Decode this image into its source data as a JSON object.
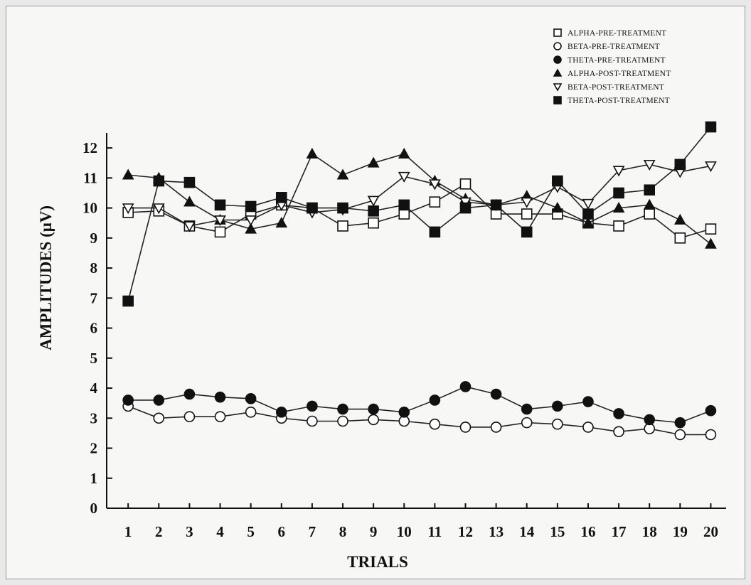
{
  "chart_data": {
    "type": "line",
    "title": "",
    "xlabel": "TRIALS",
    "ylabel": "AMPLITUDES (μV)",
    "ylim": [
      0,
      12.5
    ],
    "xlim": [
      0.3,
      20.5
    ],
    "grid": false,
    "legend_position": "top-right",
    "categories": [
      "1",
      "2",
      "3",
      "4",
      "5",
      "6",
      "7",
      "8",
      "9",
      "10",
      "11",
      "12",
      "13",
      "14",
      "15",
      "16",
      "17",
      "18",
      "19",
      "20"
    ],
    "y_ticks": [
      "0",
      "1",
      "2",
      "3",
      "4",
      "5",
      "6",
      "7",
      "8",
      "9",
      "10",
      "11",
      "12"
    ],
    "series": [
      {
        "name": "ALPHA-PRE-TREATMENT",
        "marker": "square-open",
        "values": [
          9.85,
          9.9,
          9.4,
          9.2,
          9.8,
          10.1,
          10.0,
          9.4,
          9.5,
          9.8,
          10.2,
          10.8,
          9.8,
          9.8,
          9.8,
          9.5,
          9.4,
          9.8,
          9.0,
          9.3
        ]
      },
      {
        "name": "BETA-PRE-TREATMENT",
        "marker": "circle-open",
        "values": [
          3.4,
          3.0,
          3.05,
          3.05,
          3.2,
          3.0,
          2.9,
          2.9,
          2.95,
          2.9,
          2.8,
          2.7,
          2.7,
          2.85,
          2.8,
          2.7,
          2.55,
          2.65,
          2.45,
          2.45
        ]
      },
      {
        "name": "THETA-PRE-TREATMENT",
        "marker": "circle-filled",
        "values": [
          3.6,
          3.6,
          3.8,
          3.7,
          3.65,
          3.2,
          3.4,
          3.3,
          3.3,
          3.2,
          3.6,
          4.05,
          3.8,
          3.3,
          3.4,
          3.55,
          3.15,
          2.95,
          2.85,
          3.25
        ]
      },
      {
        "name": "ALPHA-POST-TREATMENT",
        "marker": "triangle-up-filled",
        "values": [
          11.1,
          11.0,
          10.2,
          9.6,
          9.3,
          9.5,
          11.8,
          11.1,
          11.5,
          11.8,
          10.9,
          10.3,
          10.1,
          10.4,
          10.0,
          9.5,
          10.0,
          10.1,
          9.6,
          8.8
        ]
      },
      {
        "name": "BETA-POST-TREATMENT",
        "marker": "triangle-down-open",
        "values": [
          10.0,
          10.0,
          9.4,
          9.6,
          9.6,
          10.1,
          9.85,
          9.95,
          10.25,
          11.05,
          10.8,
          10.2,
          10.1,
          10.2,
          10.7,
          10.15,
          11.25,
          11.45,
          11.2,
          11.4
        ]
      },
      {
        "name": "THETA-POST-TREATMENT",
        "marker": "square-filled",
        "values": [
          6.9,
          10.9,
          10.85,
          10.1,
          10.05,
          10.35,
          10.0,
          10.0,
          9.9,
          10.1,
          9.2,
          10.0,
          10.1,
          9.2,
          10.9,
          9.8,
          10.5,
          10.6,
          11.45,
          12.7
        ]
      }
    ]
  }
}
